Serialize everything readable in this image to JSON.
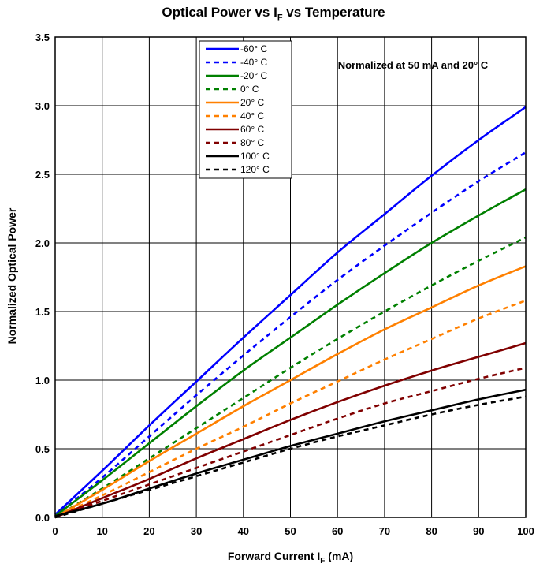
{
  "chart_data": {
    "type": "line",
    "title": "Optical Power vs I",
    "title_sub": "F",
    "title_suffix": " vs Temperature",
    "xlabel": "Forward Current I",
    "xlabel_sub": "F",
    "xlabel_suffix": " (mA)",
    "ylabel": "Normalized Optical Power",
    "annotation": "Normalized at 50 mA and 20° C",
    "xlim": [
      0,
      100
    ],
    "ylim": [
      0,
      3.5
    ],
    "xticks": [
      "0",
      "10",
      "20",
      "30",
      "40",
      "50",
      "60",
      "70",
      "80",
      "90",
      "100"
    ],
    "yticks": [
      "0.0",
      "0.5",
      "1.0",
      "1.5",
      "2.0",
      "2.5",
      "3.0",
      "3.5"
    ],
    "grid": true,
    "legend_position": "top-center",
    "x": [
      0,
      10,
      20,
      30,
      40,
      50,
      60,
      70,
      80,
      90,
      100
    ],
    "series": [
      {
        "name": "-60° C",
        "color": "#0000ff",
        "dash": "solid",
        "values": [
          0.02,
          0.34,
          0.67,
          0.99,
          1.31,
          1.62,
          1.93,
          2.21,
          2.49,
          2.75,
          2.99
        ]
      },
      {
        "name": "-40° C",
        "color": "#0000ff",
        "dash": "dashed",
        "values": [
          0.01,
          0.29,
          0.59,
          0.89,
          1.18,
          1.46,
          1.73,
          1.98,
          2.22,
          2.45,
          2.66
        ]
      },
      {
        "name": "-20° C",
        "color": "#008000",
        "dash": "solid",
        "values": [
          0.01,
          0.27,
          0.54,
          0.81,
          1.07,
          1.31,
          1.55,
          1.78,
          2.0,
          2.2,
          2.39
        ]
      },
      {
        "name": "0° C",
        "color": "#008000",
        "dash": "dashed",
        "values": [
          0.0,
          0.21,
          0.43,
          0.65,
          0.87,
          1.09,
          1.3,
          1.5,
          1.69,
          1.87,
          2.04
        ]
      },
      {
        "name": "20° C",
        "color": "#ff8000",
        "dash": "solid",
        "values": [
          0.0,
          0.2,
          0.41,
          0.61,
          0.81,
          1.0,
          1.19,
          1.37,
          1.53,
          1.69,
          1.83
        ]
      },
      {
        "name": "40° C",
        "color": "#ff8000",
        "dash": "dashed",
        "values": [
          0.0,
          0.16,
          0.33,
          0.5,
          0.66,
          0.83,
          0.99,
          1.15,
          1.3,
          1.45,
          1.58
        ]
      },
      {
        "name": "60° C",
        "color": "#800000",
        "dash": "solid",
        "values": [
          0.0,
          0.14,
          0.28,
          0.43,
          0.57,
          0.71,
          0.84,
          0.96,
          1.07,
          1.17,
          1.27
        ]
      },
      {
        "name": "80° C",
        "color": "#800000",
        "dash": "dashed",
        "values": [
          0.0,
          0.12,
          0.24,
          0.36,
          0.48,
          0.6,
          0.72,
          0.83,
          0.92,
          1.01,
          1.09
        ]
      },
      {
        "name": "100° C",
        "color": "#000000",
        "dash": "solid",
        "values": [
          0.01,
          0.1,
          0.21,
          0.32,
          0.42,
          0.52,
          0.61,
          0.7,
          0.78,
          0.86,
          0.93
        ]
      },
      {
        "name": "120° C",
        "color": "#000000",
        "dash": "dashed",
        "values": [
          0.0,
          0.1,
          0.2,
          0.3,
          0.4,
          0.5,
          0.59,
          0.67,
          0.75,
          0.82,
          0.88
        ]
      }
    ]
  }
}
